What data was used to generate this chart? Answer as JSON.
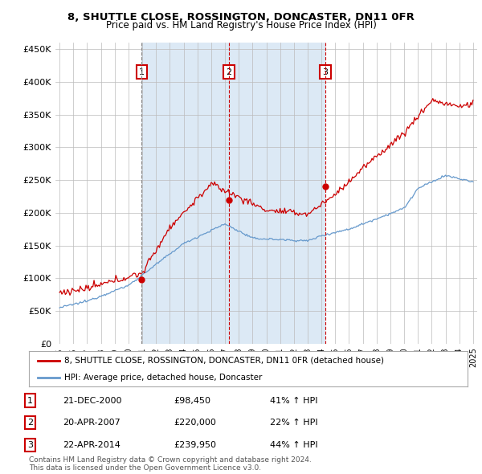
{
  "title": "8, SHUTTLE CLOSE, ROSSINGTON, DONCASTER, DN11 0FR",
  "subtitle": "Price paid vs. HM Land Registry's House Price Index (HPI)",
  "yticks": [
    0,
    50000,
    100000,
    150000,
    200000,
    250000,
    300000,
    350000,
    400000,
    450000
  ],
  "ytick_labels": [
    "£0",
    "£50K",
    "£100K",
    "£150K",
    "£200K",
    "£250K",
    "£300K",
    "£350K",
    "£400K",
    "£450K"
  ],
  "sale_prices": [
    98450,
    220000,
    239950
  ],
  "sale_labels": [
    "1",
    "2",
    "3"
  ],
  "legend_house": "8, SHUTTLE CLOSE, ROSSINGTON, DONCASTER, DN11 0FR (detached house)",
  "legend_hpi": "HPI: Average price, detached house, Doncaster",
  "table_rows": [
    [
      "1",
      "21-DEC-2000",
      "£98,450",
      "41% ↑ HPI"
    ],
    [
      "2",
      "20-APR-2007",
      "£220,000",
      "22% ↑ HPI"
    ],
    [
      "3",
      "22-APR-2014",
      "£239,950",
      "44% ↑ HPI"
    ]
  ],
  "footer": "Contains HM Land Registry data © Crown copyright and database right 2024.\nThis data is licensed under the Open Government Licence v3.0.",
  "house_color": "#cc0000",
  "hpi_color": "#6699cc",
  "grid_color": "#bbbbbb",
  "bg_color": "#ffffff",
  "plot_bg": "#ffffff",
  "shade_color": "#dce9f5",
  "vline1_color": "#888888",
  "vline23_color": "#cc0000"
}
